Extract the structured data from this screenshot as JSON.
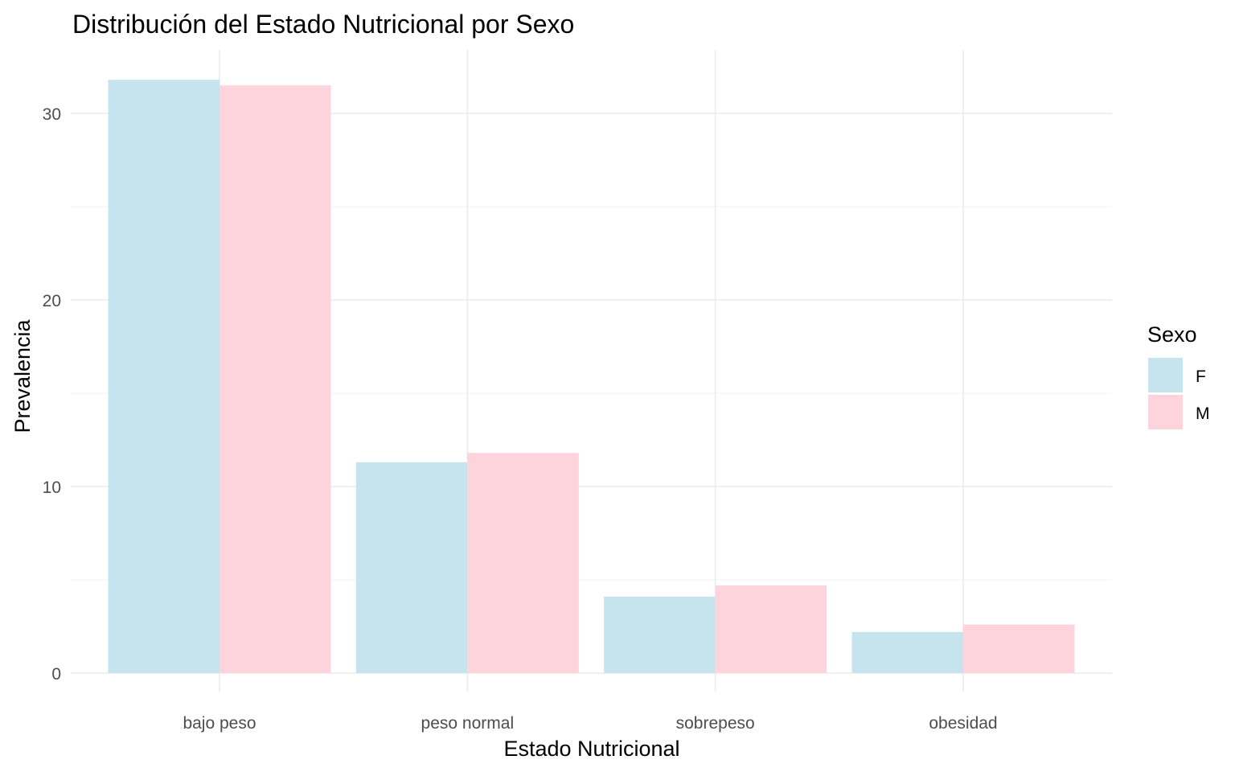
{
  "chart_data": {
    "type": "bar",
    "title": "Distribución del Estado Nutricional por Sexo",
    "xlabel": "Estado Nutricional",
    "ylabel": "Prevalencia",
    "categories": [
      "bajo peso",
      "peso normal",
      "sobrepeso",
      "obesidad"
    ],
    "series": [
      {
        "name": "F",
        "color": "#c6e4ed",
        "values": [
          31.8,
          11.3,
          4.1,
          2.2
        ]
      },
      {
        "name": "M",
        "color": "#fdd3dc",
        "values": [
          31.5,
          11.8,
          4.7,
          2.6
        ]
      }
    ],
    "ylim": [
      0,
      32.6
    ],
    "yticks": [
      0,
      10,
      20,
      30
    ],
    "grid": true,
    "legend": {
      "title": "Sexo",
      "placement": "right"
    }
  }
}
